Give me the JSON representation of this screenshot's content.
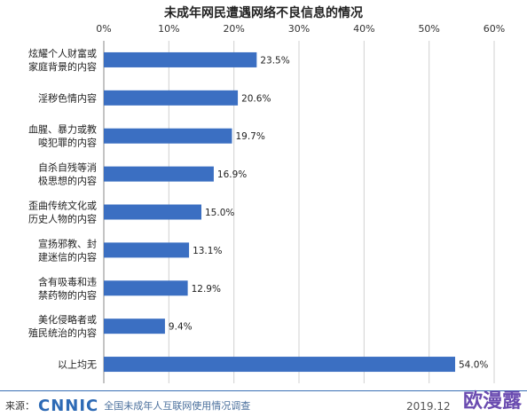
{
  "chart_data": {
    "type": "bar",
    "orientation": "horizontal",
    "title": "未成年网民遭遇网络不良信息的情况",
    "categories": [
      [
        "炫耀个人财富或",
        "家庭背景的内容"
      ],
      [
        "淫秽色情内容"
      ],
      [
        "血腥、暴力或教",
        "唆犯罪的内容"
      ],
      [
        "自杀自残等消",
        "极思想的内容"
      ],
      [
        "歪曲传统文化或",
        "历史人物的内容"
      ],
      [
        "宣扬邪教、封",
        "建迷信的内容"
      ],
      [
        "含有吸毒和违",
        "禁药物的内容"
      ],
      [
        "美化侵略者或",
        "殖民统治的内容"
      ],
      [
        "以上均无"
      ]
    ],
    "values": [
      23.5,
      20.6,
      19.7,
      16.9,
      15.0,
      13.1,
      12.9,
      9.4,
      54.0
    ],
    "value_labels": [
      "23.5%",
      "20.6%",
      "19.7%",
      "16.9%",
      "15.0%",
      "13.1%",
      "12.9%",
      "9.4%",
      "54.0%"
    ],
    "x_ticks": [
      "0%",
      "10%",
      "20%",
      "30%",
      "40%",
      "50%",
      "60%"
    ],
    "xlim": [
      0,
      60
    ],
    "grid": true,
    "axis_position": "top",
    "bar_color": "#3b6fc2"
  },
  "footer": {
    "source_label": "来源：",
    "logo_text": "CNNIC",
    "source_text": "全国未成年人互联网使用情况调查",
    "date": "2019.12"
  },
  "watermark": {
    "text": "欧漫露"
  }
}
